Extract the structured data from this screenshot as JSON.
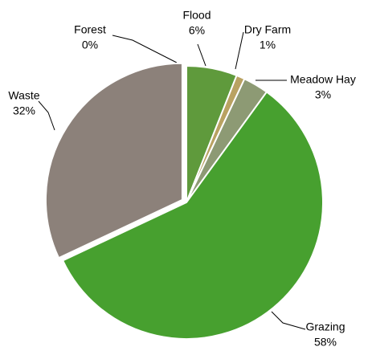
{
  "chart_data": {
    "type": "pie",
    "categories": [
      "Forest",
      "Flood",
      "Dry Farm",
      "Meadow Hay",
      "Grazing",
      "Waste"
    ],
    "values": [
      0,
      6,
      1,
      3,
      58,
      32
    ],
    "value_labels": [
      "0%",
      "6%",
      "1%",
      "3%",
      "58%",
      "32%"
    ],
    "colors": [
      "#2f5a2a",
      "#5f9a3c",
      "#b9a262",
      "#8d9a74",
      "#47a02f",
      "#8c817a"
    ]
  }
}
